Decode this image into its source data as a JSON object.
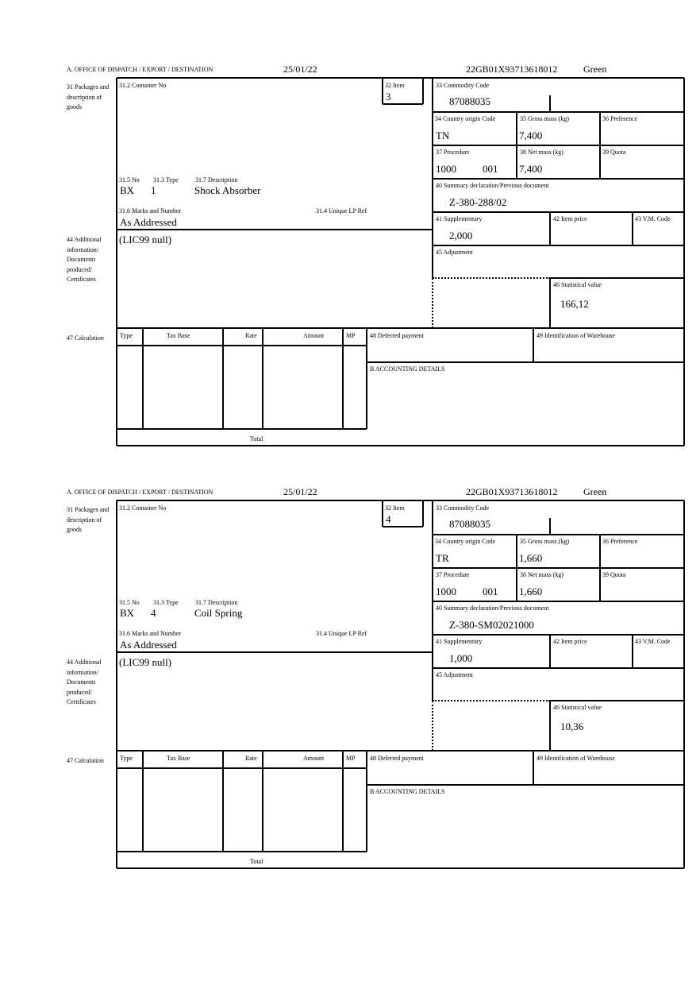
{
  "labels": {
    "header": "A.  OFFICE OF DISPATCH / EXPORT / DESTINATION",
    "packages": "31 Packages and description of goods",
    "container": "31.2 Container No",
    "item": "32 Item",
    "no": "31.5 No",
    "type": "31.3 Type",
    "description": "31.7 Description",
    "marks": "31.6 Marks and Number",
    "unique_ref": "31.4 Unique LP Ref",
    "additional": "44 Additional information/ Documents produced/ Certificates",
    "commodity": "33 Commodity Code",
    "country": "34 Country origin Code",
    "gross": "35 Gross mass (kg)",
    "preference": "36 Preference",
    "procedure": "37 Procedure",
    "net": "38 Net mass (kg)",
    "quota": "39 Quota",
    "summary": "40 Summary declaration/Previous document",
    "supplementary": "41 Supplementary",
    "item_price": "42 Item price",
    "vm_code": "43 V.M. Code",
    "adjustment": "45 Adjustment",
    "statistical": "46 Statistical value",
    "calculation": "47 Calculation",
    "calc_cols": [
      "Type",
      "Tax Base",
      "Rate",
      "Amount",
      "MP"
    ],
    "total": "Total",
    "deferred": "48 Deferred payment",
    "warehouse": "49 Identification of Warehouse",
    "accounting": "B ACCOUNTING DETAILS"
  },
  "forms": [
    {
      "date": "25/01/22",
      "reference": "22GB01X93713618012",
      "route": "Green",
      "item": "3",
      "no": "BX",
      "type": "1",
      "description": "Shock Absorber",
      "marks": "As Addressed",
      "additional": "(LIC99 null)",
      "commodity": "87088035",
      "country": "TN",
      "gross": "7,400",
      "procedure": "1000",
      "procedure_add": "001",
      "net": "7,400",
      "summary": "Z-380-288/02",
      "supplementary": "2,000",
      "statistical": "166,12"
    },
    {
      "date": "25/01/22",
      "reference": "22GB01X93713618012",
      "route": "Green",
      "item": "4",
      "no": "BX",
      "type": "4",
      "description": "Coil Spring",
      "marks": "As Addressed",
      "additional": "(LIC99 null)",
      "commodity": "87088035",
      "country": "TR",
      "gross": "1,660",
      "procedure": "1000",
      "procedure_add": "001",
      "net": "1,660",
      "summary": "Z-380-SM02021000",
      "supplementary": "1,000",
      "statistical": "10,36"
    }
  ]
}
